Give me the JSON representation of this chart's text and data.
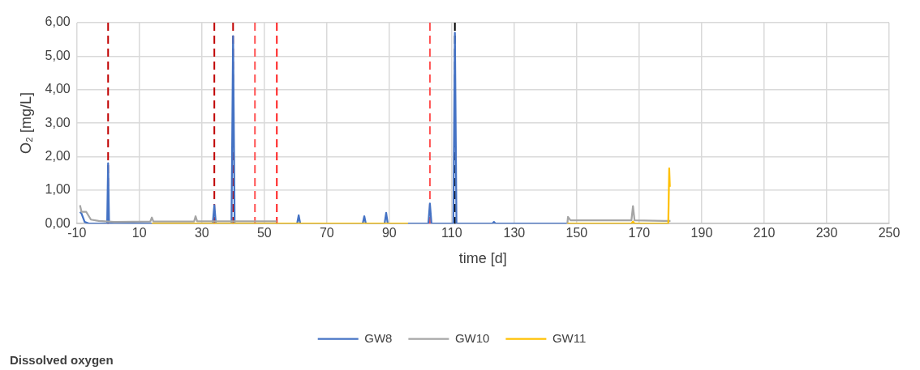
{
  "chart_data": {
    "type": "line",
    "title": "Dissolved oxygen",
    "xlabel": "time [d]",
    "ylabel": "O₂ [mg/L]",
    "xlim": [
      -10,
      250
    ],
    "xticks": [
      -10,
      10,
      30,
      50,
      70,
      90,
      110,
      130,
      150,
      170,
      190,
      210,
      230,
      250
    ],
    "ylim": [
      0,
      6
    ],
    "yticks": [
      {
        "value": 0,
        "label": "0,00"
      },
      {
        "value": 1,
        "label": "1,00"
      },
      {
        "value": 2,
        "label": "2,00"
      },
      {
        "value": 3,
        "label": "3,00"
      },
      {
        "value": 4,
        "label": "4,00"
      },
      {
        "value": 5,
        "label": "5,00"
      },
      {
        "value": 6,
        "label": "6,00"
      }
    ],
    "grid": true,
    "legend": "bottom",
    "marker": "none",
    "line_style": "solid",
    "series": [
      {
        "name": "GW8",
        "color": "#4472c4",
        "x": [
          -9,
          -8.5,
          -7.5,
          -6,
          -1,
          -0.3,
          0,
          0.3,
          1,
          33.5,
          34,
          34.5,
          39.5,
          40,
          40.5,
          60.5,
          61,
          61.5,
          81.5,
          82,
          82.5,
          88.5,
          89,
          89.5,
          102.5,
          103,
          103.5,
          110.5,
          111,
          111.5,
          123,
          123.5,
          124,
          179.5
        ],
        "values": [
          0.35,
          0.3,
          0.05,
          0,
          0,
          0,
          1.8,
          0,
          0,
          0,
          0.55,
          0,
          0,
          5.6,
          0,
          0,
          0.25,
          0,
          0,
          0.22,
          0,
          0,
          0.32,
          0,
          0,
          0.6,
          0,
          0,
          5.7,
          0,
          0,
          0.05,
          0,
          0
        ]
      },
      {
        "name": "GW10",
        "color": "#a5a5a5",
        "x": [
          -9,
          -8.5,
          -7,
          -5.5,
          -3,
          2,
          13.5,
          14,
          14.5,
          27.5,
          28,
          28.5,
          54,
          100,
          147,
          147.2,
          148,
          167.5,
          168,
          168.5,
          178,
          180
        ],
        "values": [
          0.55,
          0.35,
          0.35,
          0.12,
          0.08,
          0.05,
          0.06,
          0.18,
          0.06,
          0.06,
          0.22,
          0.07,
          0.07,
          null,
          0,
          0.2,
          0.1,
          0.1,
          0.52,
          0.1,
          0.08,
          0.08
        ]
      },
      {
        "name": "GW11",
        "color": "#ffc000",
        "x": [
          14,
          96,
          120,
          147,
          167.5,
          168,
          168.5,
          179.3,
          179.6,
          179.8
        ],
        "values": [
          0,
          0,
          null,
          0,
          0,
          0.06,
          0,
          0,
          1.65,
          1.1
        ]
      }
    ],
    "ref_lines": [
      {
        "axis": "x",
        "value": 0,
        "color": "#c00000",
        "line_style": "dashed"
      },
      {
        "axis": "x",
        "value": 34,
        "color": "#c00000",
        "line_style": "dashed"
      },
      {
        "axis": "x",
        "value": 40,
        "color": "#c00000",
        "line_style": "dashed"
      },
      {
        "axis": "x",
        "value": 47,
        "color": "#ff5050",
        "line_style": "dashed"
      },
      {
        "axis": "x",
        "value": 54,
        "color": "#ff2020",
        "line_style": "dashed"
      },
      {
        "axis": "x",
        "value": 103,
        "color": "#ff5050",
        "line_style": "dashed"
      },
      {
        "axis": "x",
        "value": 111,
        "color": "#000000",
        "line_style": "dashed"
      }
    ]
  }
}
